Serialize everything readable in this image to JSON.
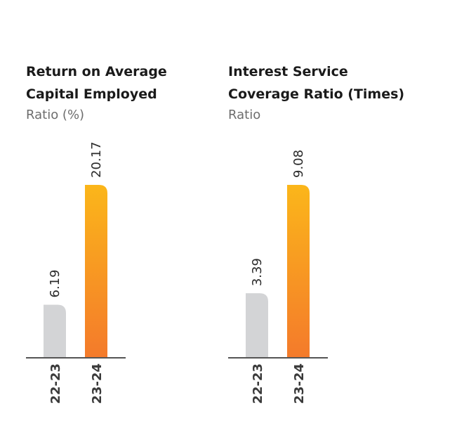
{
  "colors": {
    "prior_bar": "#d3d4d6",
    "current_top": "#fbb61a",
    "current_bottom": "#f47a2b",
    "axis": "#555555"
  },
  "chart_data": [
    {
      "type": "bar",
      "title_lines": [
        "Return on Average",
        "Capital Employed"
      ],
      "subtitle": "Ratio (%)",
      "categories": [
        "22-23",
        "23-24"
      ],
      "values": [
        6.19,
        20.17
      ],
      "value_labels": [
        "6.19",
        "20.17"
      ],
      "ylim": [
        0,
        20.17
      ],
      "grid": false
    },
    {
      "type": "bar",
      "title_lines": [
        "Interest Service",
        "Coverage Ratio (Times)"
      ],
      "subtitle": "Ratio",
      "categories": [
        "22-23",
        "23-24"
      ],
      "values": [
        3.39,
        9.08
      ],
      "value_labels": [
        "3.39",
        "9.08"
      ],
      "ylim": [
        0,
        9.08
      ],
      "grid": false
    }
  ]
}
